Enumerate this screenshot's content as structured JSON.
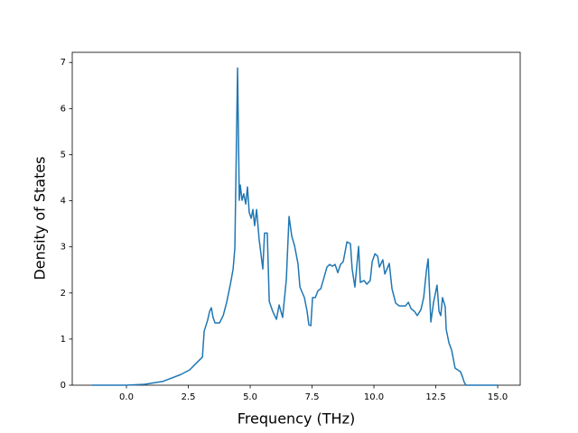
{
  "chart_data": {
    "type": "line",
    "xlabel": "Frequency (THz)",
    "ylabel": "Density of States",
    "x": [
      -1.39,
      0,
      0.73,
      1.46,
      2.19,
      2.55,
      2.92,
      3.07,
      3.14,
      3.28,
      3.36,
      3.43,
      3.5,
      3.58,
      3.76,
      3.91,
      4.05,
      4.2,
      4.31,
      4.38,
      4.49,
      4.56,
      4.6,
      4.67,
      4.74,
      4.82,
      4.89,
      4.96,
      5.04,
      5.11,
      5.18,
      5.26,
      5.36,
      5.51,
      5.58,
      5.69,
      5.77,
      5.91,
      6.06,
      6.17,
      6.31,
      6.46,
      6.57,
      6.68,
      6.79,
      6.93,
      7.01,
      7.19,
      7.3,
      7.37,
      7.45,
      7.52,
      7.63,
      7.74,
      7.85,
      7.96,
      8.1,
      8.21,
      8.32,
      8.43,
      8.54,
      8.65,
      8.76,
      8.91,
      9.05,
      9.12,
      9.23,
      9.38,
      9.45,
      9.6,
      9.71,
      9.85,
      9.93,
      10.04,
      10.15,
      10.22,
      10.36,
      10.44,
      10.62,
      10.73,
      10.88,
      11.02,
      11.28,
      11.39,
      11.5,
      11.64,
      11.75,
      11.9,
      12.01,
      12.12,
      12.19,
      12.3,
      12.41,
      12.55,
      12.63,
      12.7,
      12.77,
      12.88,
      12.92,
      13.03,
      13.14,
      13.28,
      13.5,
      13.58,
      13.65,
      13.72,
      15.0
    ],
    "series": [
      {
        "color": "#1f77b4",
        "values": [
          0,
          0,
          0.02,
          0.08,
          0.23,
          0.33,
          0.53,
          0.61,
          1.17,
          1.41,
          1.6,
          1.68,
          1.47,
          1.35,
          1.35,
          1.51,
          1.8,
          2.19,
          2.52,
          2.97,
          6.88,
          4.01,
          4.34,
          4.01,
          4.15,
          3.93,
          4.3,
          3.75,
          3.62,
          3.81,
          3.46,
          3.81,
          3.17,
          2.52,
          3.3,
          3.3,
          1.82,
          1.6,
          1.43,
          1.74,
          1.47,
          2.29,
          3.66,
          3.23,
          3.03,
          2.64,
          2.13,
          1.9,
          1.6,
          1.31,
          1.29,
          1.9,
          1.9,
          2.05,
          2.09,
          2.29,
          2.56,
          2.62,
          2.58,
          2.62,
          2.44,
          2.62,
          2.68,
          3.11,
          3.07,
          2.52,
          2.13,
          3.01,
          2.23,
          2.27,
          2.19,
          2.27,
          2.68,
          2.85,
          2.8,
          2.56,
          2.72,
          2.41,
          2.64,
          2.09,
          1.78,
          1.72,
          1.72,
          1.8,
          1.66,
          1.6,
          1.51,
          1.64,
          1.9,
          2.48,
          2.74,
          1.37,
          1.8,
          2.17,
          1.6,
          1.51,
          1.9,
          1.7,
          1.21,
          0.92,
          0.76,
          0.37,
          0.29,
          0.18,
          0.06,
          0,
          0
        ]
      }
    ],
    "xlim": [
      -2.19,
      15.91
    ],
    "ylim": [
      0,
      7.22
    ],
    "xticks": [
      {
        "value": 0,
        "label": "0.0"
      },
      {
        "value": 2.5,
        "label": "2.5"
      },
      {
        "value": 5,
        "label": "5.0"
      },
      {
        "value": 7.5,
        "label": "7.5"
      },
      {
        "value": 10,
        "label": "10.0"
      },
      {
        "value": 12.5,
        "label": "12.5"
      },
      {
        "value": 15,
        "label": "15.0"
      }
    ],
    "yticks": [
      0,
      1,
      2,
      3,
      4,
      5,
      6,
      7
    ]
  }
}
